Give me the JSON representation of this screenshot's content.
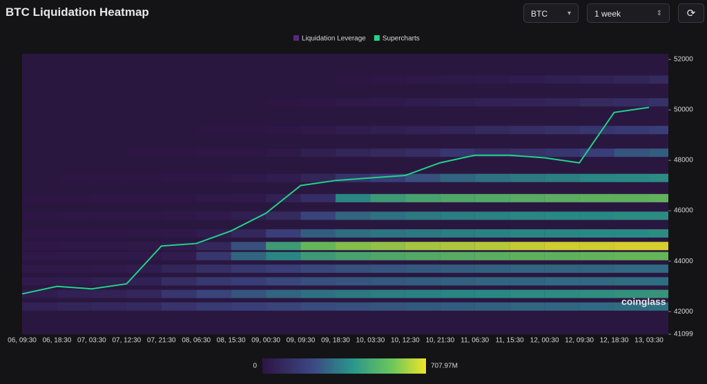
{
  "header": {
    "title": "BTC Liquidation Heatmap",
    "symbol": "BTC",
    "range": "1 week"
  },
  "watermark": "coinglass",
  "chart_data": {
    "type": "heatmap",
    "x": [
      "06, 09:30",
      "06, 18:30",
      "07, 03:30",
      "07, 12:30",
      "07, 21:30",
      "08, 06:30",
      "08, 15:30",
      "09, 00:30",
      "09, 09:30",
      "09, 18:30",
      "10, 03:30",
      "10, 12:30",
      "10, 21:30",
      "11, 06:30",
      "11, 15:30",
      "12, 00:30",
      "12, 09:30",
      "12, 18:30",
      "13, 03:30"
    ],
    "ylim": [
      41099,
      52222
    ],
    "yticks": [
      41099,
      42000,
      44000,
      46000,
      48000,
      50000,
      52000
    ],
    "levels": [
      42200,
      42700,
      43200,
      43700,
      44200,
      44600,
      45100,
      45800,
      46500,
      47300,
      48300,
      49200,
      50300,
      51200
    ],
    "zlim": [
      0,
      707.97
    ],
    "zticks": [
      0,
      {
        "value": 707.97,
        "label": "707.97M"
      }
    ],
    "heatmap": {
      "name": "Liquidation Leverage",
      "color": "#5a2a7a",
      "z": [
        [
          60,
          80,
          90,
          110,
          150,
          180,
          200,
          220,
          240,
          250,
          260,
          270,
          280,
          290,
          300,
          300,
          310,
          320,
          330
        ],
        [
          40,
          60,
          70,
          90,
          160,
          220,
          260,
          300,
          330,
          350,
          360,
          370,
          380,
          390,
          400,
          400,
          410,
          420,
          430
        ],
        [
          30,
          40,
          50,
          60,
          120,
          170,
          200,
          230,
          250,
          260,
          270,
          280,
          290,
          300,
          300,
          310,
          310,
          320,
          320
        ],
        [
          20,
          20,
          30,
          40,
          80,
          130,
          170,
          200,
          230,
          250,
          260,
          270,
          280,
          290,
          300,
          300,
          300,
          310,
          310
        ],
        [
          15,
          20,
          20,
          25,
          40,
          160,
          300,
          380,
          450,
          480,
          500,
          510,
          520,
          530,
          540,
          540,
          550,
          560,
          560
        ],
        [
          10,
          15,
          15,
          20,
          30,
          90,
          250,
          450,
          560,
          600,
          620,
          640,
          650,
          660,
          680,
          690,
          690,
          700,
          700
        ],
        [
          10,
          10,
          10,
          15,
          20,
          40,
          90,
          200,
          280,
          320,
          340,
          350,
          360,
          370,
          380,
          380,
          390,
          390,
          400
        ],
        [
          5,
          10,
          10,
          10,
          15,
          30,
          50,
          100,
          220,
          300,
          330,
          350,
          360,
          370,
          380,
          390,
          390,
          400,
          400
        ],
        [
          5,
          5,
          10,
          10,
          10,
          20,
          30,
          60,
          120,
          380,
          450,
          480,
          500,
          510,
          520,
          530,
          540,
          540,
          550
        ],
        [
          null,
          5,
          5,
          5,
          10,
          10,
          20,
          40,
          80,
          150,
          200,
          250,
          300,
          330,
          350,
          360,
          380,
          390,
          400
        ],
        [
          null,
          null,
          null,
          5,
          5,
          10,
          10,
          20,
          50,
          80,
          100,
          120,
          160,
          120,
          140,
          160,
          200,
          260,
          280
        ],
        [
          null,
          null,
          null,
          null,
          null,
          5,
          5,
          10,
          20,
          40,
          50,
          60,
          80,
          100,
          120,
          140,
          160,
          180,
          200
        ],
        [
          null,
          null,
          null,
          null,
          null,
          null,
          null,
          5,
          10,
          20,
          30,
          40,
          50,
          60,
          70,
          80,
          100,
          120,
          140
        ],
        [
          null,
          null,
          null,
          null,
          null,
          null,
          null,
          null,
          null,
          5,
          10,
          15,
          20,
          30,
          40,
          50,
          60,
          80,
          100
        ]
      ]
    },
    "series": [
      {
        "name": "Supercharts",
        "color": "#1fd58a",
        "values": [
          42700,
          43000,
          42900,
          43100,
          44600,
          44700,
          45200,
          45900,
          47000,
          47200,
          47300,
          47400,
          47900,
          48200,
          48200,
          48100,
          47900,
          49900,
          50100
        ]
      }
    ]
  }
}
